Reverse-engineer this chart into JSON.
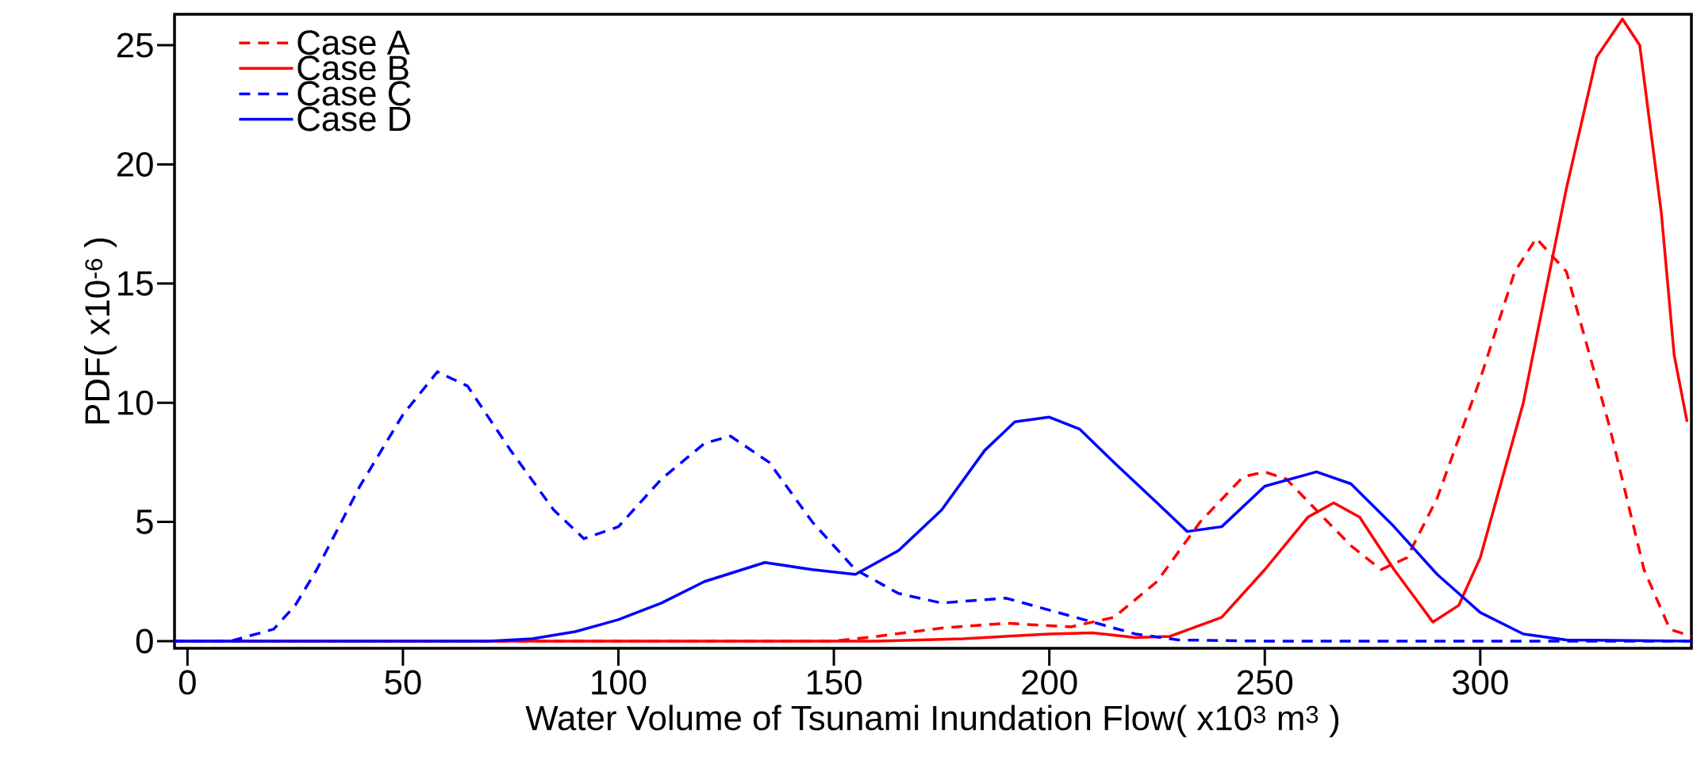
{
  "chart_data": {
    "type": "line",
    "xlabel": "Water Volume of Tsunami Inundation Flow( x10$^{3}$  m$^{3}$ )",
    "ylabel": "PDF( x10$^{-6}$ )",
    "xlim": [
      -3,
      349
    ],
    "ylim": [
      -0.3,
      26.3
    ],
    "xticks": [
      0,
      50,
      100,
      150,
      200,
      250,
      300
    ],
    "yticks": [
      0,
      5,
      10,
      15,
      20,
      25
    ],
    "legend": "top left",
    "grid": false,
    "series": [
      {
        "name": "Case A",
        "color": "#ff0000",
        "line_style": "dashed",
        "x": [
          -3,
          150,
          160,
          175,
          190,
          205,
          215,
          225,
          235,
          245,
          250,
          255,
          263,
          270,
          277,
          283,
          290,
          300,
          308,
          313,
          320,
          330,
          338,
          344,
          349
        ],
        "values": [
          0,
          0,
          0.2,
          0.55,
          0.75,
          0.6,
          1,
          2.5,
          5,
          6.9,
          7.1,
          6.8,
          5.3,
          4,
          3,
          3.5,
          6,
          11,
          15.5,
          16.9,
          15.5,
          9,
          3,
          0.5,
          0.2
        ]
      },
      {
        "name": "Case B",
        "color": "#ff0000",
        "line_style": "solid",
        "x": [
          -3,
          160,
          180,
          200,
          210,
          220,
          228,
          240,
          250,
          260,
          266,
          272,
          280,
          289,
          295,
          300,
          310,
          320,
          327,
          333,
          337,
          342,
          345,
          348
        ],
        "values": [
          0,
          0,
          0.1,
          0.3,
          0.35,
          0.15,
          0.2,
          1,
          3,
          5.2,
          5.8,
          5.2,
          3,
          0.8,
          1.5,
          3.5,
          10,
          19,
          24.5,
          26.1,
          25,
          18,
          12,
          9.2
        ]
      },
      {
        "name": "Case C",
        "color": "#0000ff",
        "line_style": "dashed",
        "x": [
          -3,
          10,
          20,
          25,
          30,
          40,
          50,
          58,
          65,
          75,
          85,
          92,
          100,
          110,
          120,
          126,
          135,
          145,
          155,
          165,
          175,
          190,
          200,
          210,
          220,
          230,
          250,
          349
        ],
        "values": [
          0,
          0,
          0.5,
          1.5,
          3,
          6.5,
          9.5,
          11.3,
          10.7,
          8,
          5.5,
          4.3,
          4.8,
          6.8,
          8.3,
          8.6,
          7.5,
          5,
          3,
          2,
          1.6,
          1.8,
          1.3,
          0.8,
          0.3,
          0.05,
          0,
          0
        ]
      },
      {
        "name": "Case D",
        "color": "#0000ff",
        "line_style": "solid",
        "x": [
          -3,
          70,
          80,
          90,
          100,
          110,
          120,
          134,
          145,
          155,
          165,
          175,
          185,
          192,
          200,
          207,
          215,
          225,
          232,
          240,
          250,
          262,
          270,
          280,
          290,
          300,
          310,
          320,
          349
        ],
        "values": [
          0,
          0,
          0.1,
          0.4,
          0.9,
          1.6,
          2.5,
          3.3,
          3.0,
          2.8,
          3.8,
          5.5,
          8,
          9.2,
          9.4,
          8.9,
          7.5,
          5.8,
          4.6,
          4.8,
          6.5,
          7.1,
          6.6,
          4.8,
          2.8,
          1.2,
          0.3,
          0.05,
          0
        ]
      }
    ]
  }
}
